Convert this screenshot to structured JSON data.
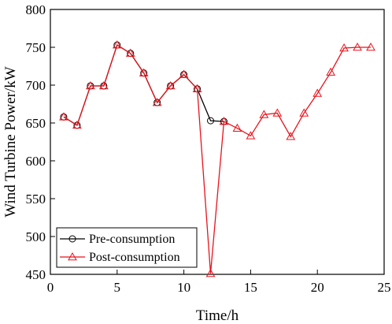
{
  "chart_data": {
    "type": "line",
    "xlabel": "Time/h",
    "ylabel": "Wind Turbine Power/kW",
    "xlim": [
      0,
      25
    ],
    "ylim": [
      450,
      800
    ],
    "xticks": [
      0,
      5,
      10,
      15,
      20,
      25
    ],
    "yticks": [
      450,
      500,
      550,
      600,
      650,
      700,
      750,
      800
    ],
    "grid": false,
    "legend_position": "bottom-left",
    "x": [
      1,
      2,
      3,
      4,
      5,
      6,
      7,
      8,
      9,
      10,
      11,
      12,
      13,
      14,
      15,
      16,
      17,
      18,
      19,
      20,
      21,
      22,
      23,
      24
    ],
    "series": [
      {
        "name": "Pre-consumption",
        "color": "#000000",
        "marker": "circle",
        "values": [
          658,
          647,
          699,
          699,
          753,
          742,
          716,
          677,
          699,
          714,
          695,
          653,
          652,
          null,
          null,
          null,
          null,
          null,
          null,
          null,
          null,
          null,
          null,
          null
        ]
      },
      {
        "name": "Post-consumption",
        "color": "#e8131b",
        "marker": "triangle",
        "values": [
          658,
          647,
          699,
          699,
          753,
          742,
          716,
          677,
          699,
          714,
          695,
          451,
          652,
          643,
          633,
          661,
          663,
          632,
          663,
          689,
          717,
          749,
          750,
          750
        ]
      }
    ]
  }
}
